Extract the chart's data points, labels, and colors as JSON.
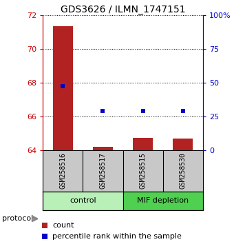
{
  "title": "GDS3626 / ILMN_1747151",
  "samples": [
    "GSM258516",
    "GSM258517",
    "GSM258515",
    "GSM258530"
  ],
  "bar_values": [
    71.35,
    64.22,
    64.72,
    64.68
  ],
  "percentile_values": [
    47.5,
    29.0,
    29.0,
    29.0
  ],
  "ylim_left": [
    64,
    72
  ],
  "ylim_right": [
    0,
    100
  ],
  "yticks_left": [
    64,
    66,
    68,
    70,
    72
  ],
  "yticks_right": [
    0,
    25,
    50,
    75,
    100
  ],
  "ytick_labels_right": [
    "0",
    "25",
    "50",
    "75",
    "100%"
  ],
  "bar_color": "#b22222",
  "dot_color": "#0000cc",
  "groups": [
    {
      "label": "control",
      "color": "#b8f0b8"
    },
    {
      "label": "MIF depletion",
      "color": "#50d050"
    }
  ],
  "group_box_color": "#c8c8c8",
  "legend_count_label": "count",
  "legend_pct_label": "percentile rank within the sample",
  "protocol_label": "protocol",
  "title_fontsize": 10,
  "axis_label_color_left": "#cc0000",
  "axis_label_color_right": "#0000cc",
  "dotted_grid_color": "#000000",
  "background_plot": "#ffffff"
}
